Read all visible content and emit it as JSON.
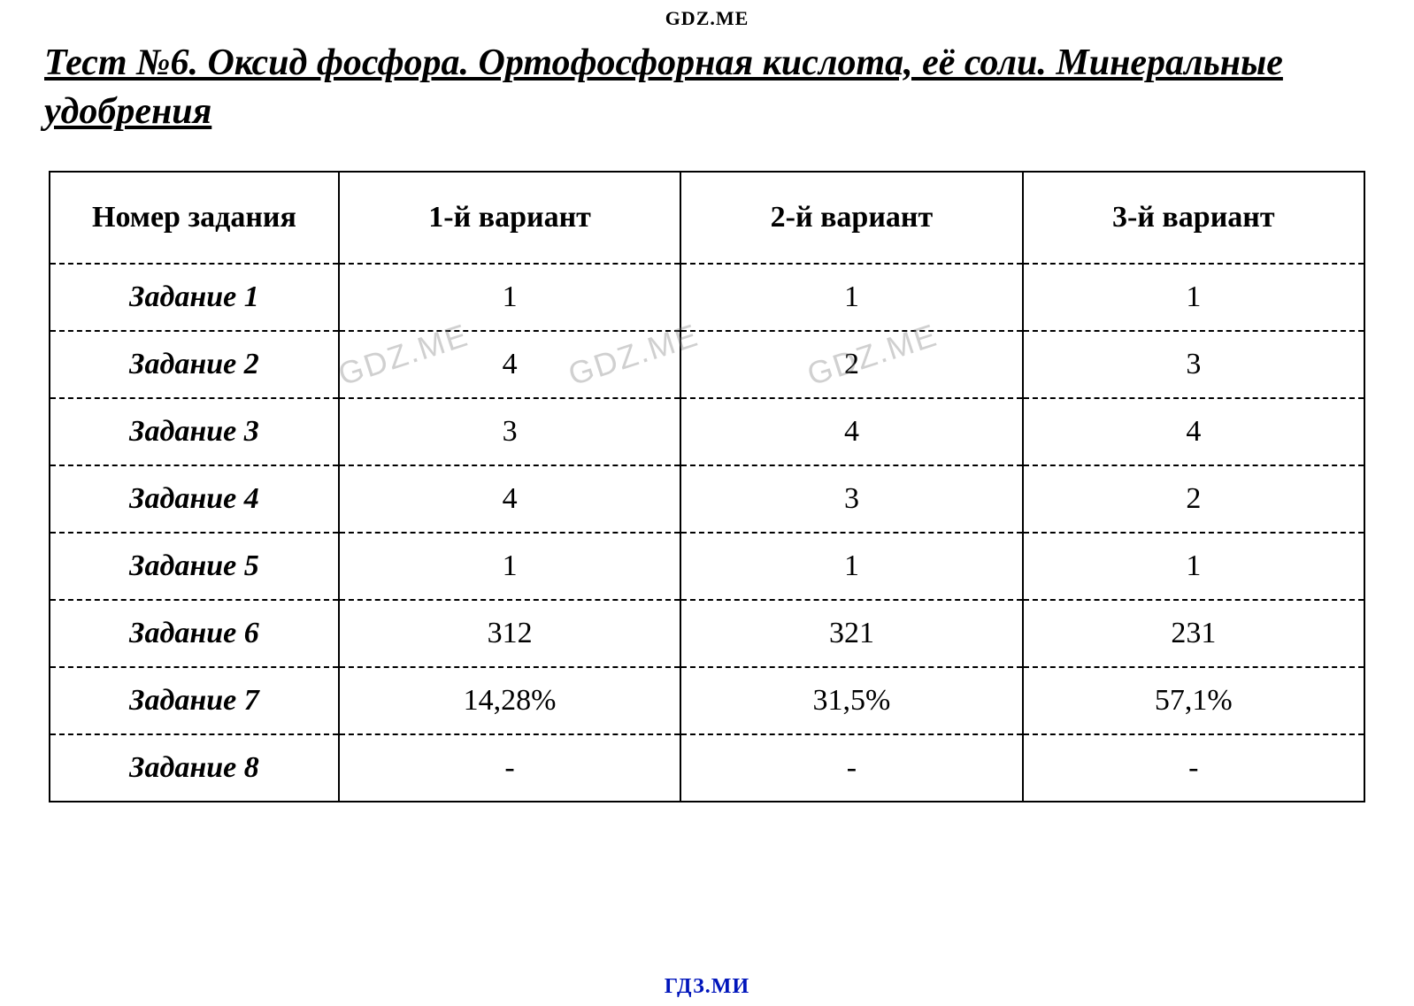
{
  "header_watermark": "GDZ.ME",
  "footer_watermark": "ГДЗ.МИ",
  "diag_watermark_text": "GDZ.ME",
  "title": "Тест №6. Оксид фосфора. Ортофосфорная кислота, её соли. Минеральные удобрения",
  "table": {
    "type": "table",
    "columns": [
      "Номер задания",
      "1-й вариант",
      "2-й вариант",
      "3-й вариант"
    ],
    "column_widths_pct": [
      22,
      26,
      26,
      26
    ],
    "header_fontsize": 34,
    "body_fontsize": 34,
    "row_label_style": {
      "bold": true,
      "italic": true
    },
    "border_color": "#000000",
    "outer_border": "solid",
    "inner_horizontal_border": "dashed",
    "inner_vertical_border": "solid",
    "background_color": "#ffffff",
    "rows": [
      {
        "label": "Задание 1",
        "values": [
          "1",
          "1",
          "1"
        ]
      },
      {
        "label": "Задание 2",
        "values": [
          "4",
          "2",
          "3"
        ]
      },
      {
        "label": "Задание 3",
        "values": [
          "3",
          "4",
          "4"
        ]
      },
      {
        "label": "Задание 4",
        "values": [
          "4",
          "3",
          "2"
        ]
      },
      {
        "label": "Задание 5",
        "values": [
          "1",
          "1",
          "1"
        ]
      },
      {
        "label": "Задание 6",
        "values": [
          "312",
          "321",
          "231"
        ]
      },
      {
        "label": "Задание 7",
        "values": [
          "14,28%",
          "31,5%",
          "57,1%"
        ]
      },
      {
        "label": "Задание 8",
        "values": [
          "-",
          "-",
          "-"
        ]
      }
    ]
  },
  "styling": {
    "title_fontsize": 42,
    "title_color": "#000000",
    "title_bold": true,
    "title_italic": true,
    "title_underline": true,
    "header_watermark_fontsize": 22,
    "header_watermark_color": "#000000",
    "footer_watermark_fontsize": 24,
    "footer_watermark_color": "#0015bb",
    "diag_watermark_fontsize": 36,
    "diag_watermark_color": "rgba(120,120,120,0.35)",
    "diag_watermark_rotation_deg": -18,
    "font_family": "Times New Roman"
  }
}
